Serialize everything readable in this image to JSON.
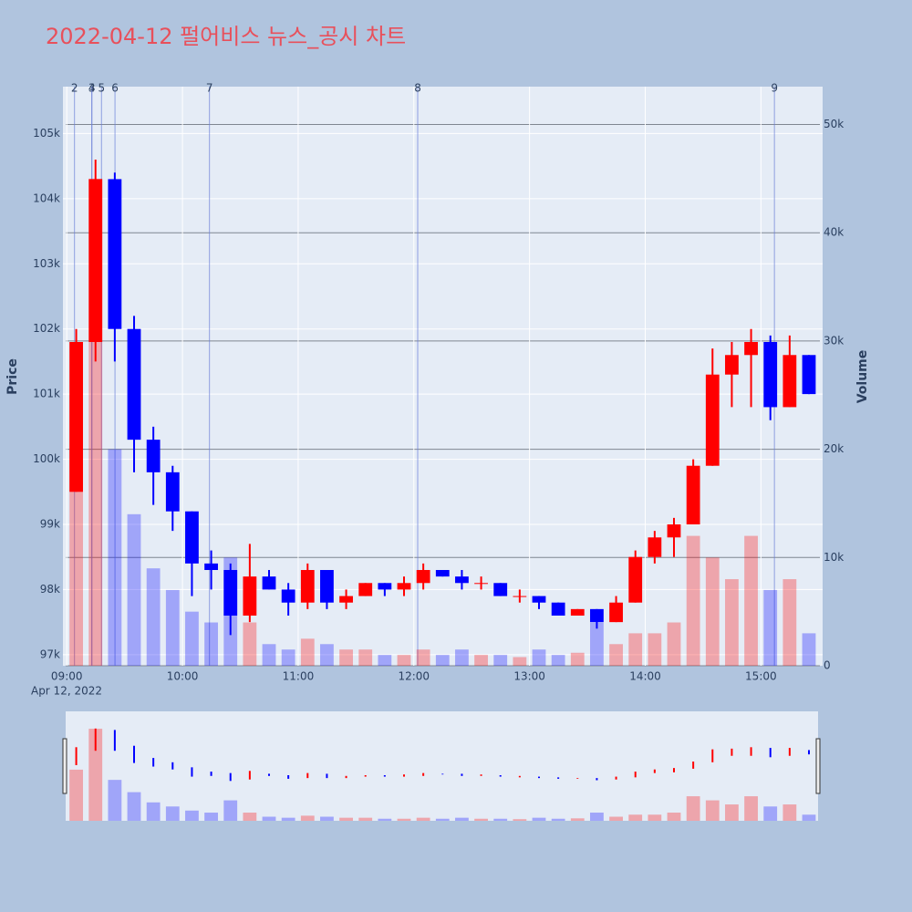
{
  "chart_data": {
    "type": "candlestick",
    "title": "2022-04-12 펄어비스 뉴스_공시 차트",
    "title_color": "#e8505b",
    "y_label": "Price",
    "y2_label": "Volume",
    "x_date_label": "Apr 12, 2022",
    "increasing_color": "#ff0000",
    "decreasing_color": "#0000ff",
    "xlim": [
      "2022-04-12 08:58",
      "2022-04-12 15:32"
    ],
    "xticks": [
      {
        "value": "2022-04-12 09:00",
        "label": "09:00"
      },
      {
        "value": "2022-04-12 10:00",
        "label": "10:00"
      },
      {
        "value": "2022-04-12 11:00",
        "label": "11:00"
      },
      {
        "value": "2022-04-12 12:00",
        "label": "12:00"
      },
      {
        "value": "2022-04-12 13:00",
        "label": "13:00"
      },
      {
        "value": "2022-04-12 14:00",
        "label": "14:00"
      },
      {
        "value": "2022-04-12 15:00",
        "label": "15:00"
      }
    ],
    "ylim": [
      96830,
      105720
    ],
    "yticks": [
      {
        "value": 97000,
        "label": "97k"
      },
      {
        "value": 98000,
        "label": "98k"
      },
      {
        "value": 99000,
        "label": "99k"
      },
      {
        "value": 100000,
        "label": "100k"
      },
      {
        "value": 101000,
        "label": "101k"
      },
      {
        "value": 102000,
        "label": "102k"
      },
      {
        "value": 103000,
        "label": "103k"
      },
      {
        "value": 104000,
        "label": "104k"
      },
      {
        "value": 105000,
        "label": "105k"
      }
    ],
    "y2lim": [
      0,
      53500
    ],
    "y2ticks": [
      0,
      {
        "value": 10000,
        "label": "10k"
      },
      {
        "value": 20000,
        "label": "20k"
      },
      {
        "value": 30000,
        "label": "30k"
      },
      {
        "value": 40000,
        "label": "40k"
      },
      {
        "value": 50000,
        "label": "50k"
      }
    ],
    "x": [
      "2022-04-12 09:00",
      "2022-04-12 09:10",
      "2022-04-12 09:20",
      "2022-04-12 09:30",
      "2022-04-12 09:40",
      "2022-04-12 09:50",
      "2022-04-12 10:00",
      "2022-04-12 10:10",
      "2022-04-12 10:20",
      "2022-04-12 10:30",
      "2022-04-12 10:40",
      "2022-04-12 10:50",
      "2022-04-12 11:00",
      "2022-04-12 11:10",
      "2022-04-12 11:20",
      "2022-04-12 11:30",
      "2022-04-12 11:40",
      "2022-04-12 11:50",
      "2022-04-12 12:00",
      "2022-04-12 12:10",
      "2022-04-12 12:20",
      "2022-04-12 12:30",
      "2022-04-12 12:40",
      "2022-04-12 12:50",
      "2022-04-12 13:00",
      "2022-04-12 13:10",
      "2022-04-12 13:20",
      "2022-04-12 13:30",
      "2022-04-12 13:40",
      "2022-04-12 13:50",
      "2022-04-12 14:00",
      "2022-04-12 14:10",
      "2022-04-12 14:20",
      "2022-04-12 14:30",
      "2022-04-12 14:40",
      "2022-04-12 14:50",
      "2022-04-12 15:00",
      "2022-04-12 15:10",
      "2022-04-12 15:20"
    ],
    "open": [
      99500,
      101800,
      104300,
      102000,
      100300,
      99800,
      99200,
      98400,
      98300,
      97600,
      98200,
      98000,
      97800,
      98300,
      97800,
      97900,
      98100,
      98000,
      98100,
      98300,
      98200,
      98100,
      98100,
      97900,
      97900,
      97800,
      97600,
      97700,
      97500,
      97800,
      98500,
      98800,
      99000,
      99900,
      101300,
      101600,
      101800,
      100800,
      101600
    ],
    "high": [
      102000,
      104600,
      104400,
      102200,
      100500,
      99900,
      99200,
      98600,
      98400,
      98700,
      98300,
      98100,
      98400,
      98300,
      98000,
      98100,
      98100,
      98200,
      98400,
      98300,
      98300,
      98200,
      98100,
      98000,
      97900,
      97800,
      97700,
      97700,
      97900,
      98600,
      98900,
      99100,
      100000,
      101700,
      101800,
      102000,
      101900,
      101900,
      101600
    ],
    "low": [
      99500,
      101500,
      101500,
      99800,
      99300,
      98900,
      97900,
      98000,
      97300,
      97500,
      98000,
      97600,
      97700,
      97700,
      97700,
      97900,
      97900,
      97900,
      98000,
      98200,
      98000,
      98000,
      97900,
      97800,
      97700,
      97600,
      97600,
      97400,
      97500,
      97800,
      98400,
      98500,
      99000,
      99900,
      100800,
      100800,
      100600,
      100800,
      101000
    ],
    "close": [
      101800,
      104300,
      102000,
      100300,
      99800,
      99200,
      98400,
      98300,
      97600,
      98200,
      98000,
      97800,
      98300,
      97800,
      97900,
      98100,
      98000,
      98100,
      98300,
      98200,
      98100,
      98100,
      97900,
      97900,
      97800,
      97600,
      97700,
      97500,
      97800,
      98500,
      98800,
      99000,
      99900,
      101300,
      101600,
      101800,
      100800,
      101600,
      101000
    ],
    "volume": [
      25000,
      45000,
      20000,
      14000,
      9000,
      7000,
      5000,
      4000,
      10000,
      4000,
      2000,
      1500,
      2500,
      2000,
      1500,
      1500,
      1000,
      1000,
      1500,
      1000,
      1500,
      1000,
      1000,
      800,
      1500,
      1000,
      1200,
      4000,
      2000,
      3000,
      3000,
      4000,
      12000,
      10000,
      8000,
      12000,
      7000,
      8000,
      3000
    ],
    "events": [
      {
        "label": "2",
        "x": "2022-04-12 09:04"
      },
      {
        "label": "3",
        "x": "2022-04-12 09:13"
      },
      {
        "label": "4",
        "x": "2022-04-12 09:13"
      },
      {
        "label": "5",
        "x": "2022-04-12 09:18"
      },
      {
        "label": "6",
        "x": "2022-04-12 09:25"
      },
      {
        "label": "7",
        "x": "2022-04-12 10:14"
      },
      {
        "label": "8",
        "x": "2022-04-12 12:02"
      },
      {
        "label": "9",
        "x": "2022-04-12 15:07"
      }
    ]
  }
}
